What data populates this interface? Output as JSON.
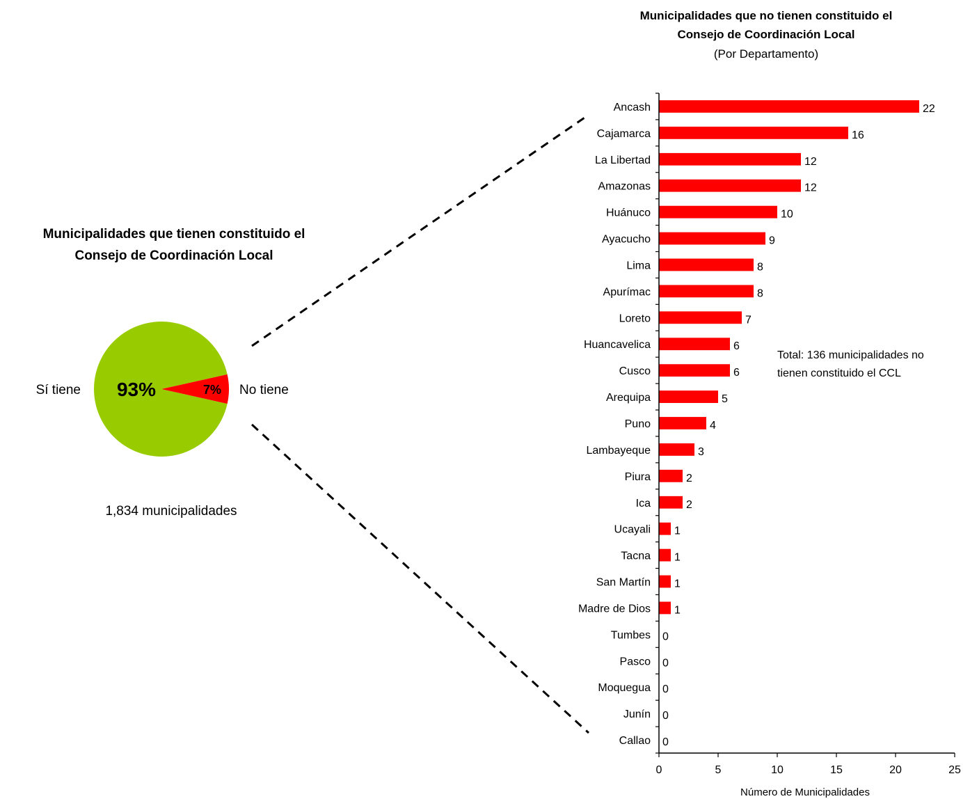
{
  "colors": {
    "pie_yes": "#99CC00",
    "pie_no": "#FF0000",
    "bars": "#FF0000",
    "text": "#000000"
  },
  "pie_title_lines": [
    "Municipalidades que tienen constituido el",
    "Consejo de Coordinación Local"
  ],
  "pie_footer": "1,834 municipalidades",
  "bar_title_lines": [
    "Municipalidades que no tienen constituido el",
    "Consejo de Coordinación Local"
  ],
  "bar_subtitle": "(Por Departamento)",
  "annotation_lines": [
    "Total: 136 municipalidades no",
    "tienen constituido el CCL"
  ],
  "chart_data": [
    {
      "type": "pie",
      "title": "Municipalidades que tienen constituido el Consejo de Coordinación Local",
      "labels": [
        "Sí tiene",
        "No tiene"
      ],
      "values": [
        93,
        7
      ],
      "value_labels": [
        "93%",
        "7%"
      ],
      "colors": [
        "#99CC00",
        "#FF0000"
      ],
      "note": "1,834 municipalidades"
    },
    {
      "type": "bar",
      "orientation": "horizontal",
      "title": "Municipalidades que no tienen constituido el Consejo de Coordinación Local",
      "subtitle": "(Por Departamento)",
      "xlabel": "Número de Municipalidades",
      "ylabel": "",
      "xlim": [
        0,
        25
      ],
      "xticks": [
        0,
        5,
        10,
        15,
        20,
        25
      ],
      "grid": false,
      "color": "#FF0000",
      "categories": [
        "Ancash",
        "Cajamarca",
        "La Libertad",
        "Amazonas",
        "Huánuco",
        "Ayacucho",
        "Lima",
        "Apurímac",
        "Loreto",
        "Huancavelica",
        "Cusco",
        "Arequipa",
        "Puno",
        "Lambayeque",
        "Piura",
        "Ica",
        "Ucayali",
        "Tacna",
        "San Martín",
        "Madre de Dios",
        "Tumbes",
        "Pasco",
        "Moquegua",
        "Junín",
        "Callao"
      ],
      "values": [
        22,
        16,
        12,
        12,
        10,
        9,
        8,
        8,
        7,
        6,
        6,
        5,
        4,
        3,
        2,
        2,
        1,
        1,
        1,
        1,
        0,
        0,
        0,
        0,
        0
      ],
      "annotation": "Total: 136 municipalidades no tienen constituido el CCL"
    }
  ]
}
